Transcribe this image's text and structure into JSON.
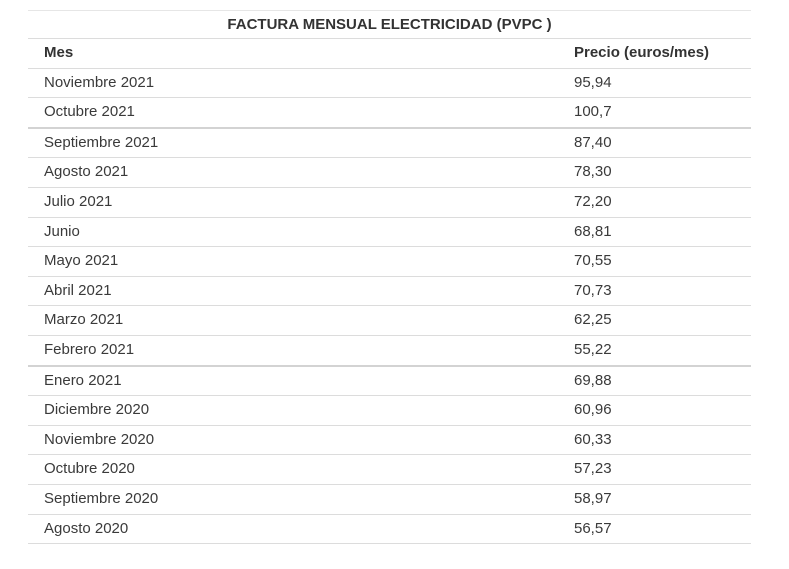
{
  "table": {
    "title": "FACTURA MENSUAL ELECTRICIDAD (PVPC )",
    "headers": {
      "month": "Mes",
      "price": "Precio (euros/mes)"
    },
    "rows": [
      {
        "month": "Noviembre 2021",
        "price": "95,94"
      },
      {
        "month": "Octubre 2021",
        "price": "100,7"
      },
      {
        "month": "Septiembre 2021",
        "price": "87,40"
      },
      {
        "month": "Agosto 2021",
        "price": "78,30"
      },
      {
        "month": "Julio 2021",
        "price": "72,20"
      },
      {
        "month": "Junio",
        "price": "68,81"
      },
      {
        "month": "Mayo 2021",
        "price": "70,55"
      },
      {
        "month": "Abril 2021",
        "price": "70,73"
      },
      {
        "month": "Marzo 2021",
        "price": "62,25"
      },
      {
        "month": "Febrero 2021",
        "price": "55,22"
      },
      {
        "month": "Enero 2021",
        "price": "69,88"
      },
      {
        "month": "Diciembre 2020",
        "price": "60,96"
      },
      {
        "month": "Noviembre 2020",
        "price": "60,33"
      },
      {
        "month": "Octubre 2020",
        "price": "57,23"
      },
      {
        "month": "Septiembre 2020",
        "price": "58,97"
      },
      {
        "month": "Agosto 2020",
        "price": "56,57"
      }
    ]
  }
}
